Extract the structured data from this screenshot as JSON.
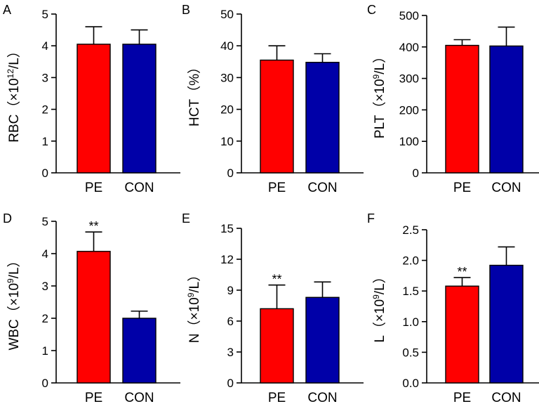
{
  "colors": {
    "pe": "#ff0000",
    "con": "#0000a8",
    "axis": "#000000"
  },
  "chart_data": [
    {
      "panel": "A",
      "type": "bar",
      "ylabel_main": "RBC（×10",
      "ylabel_sup": "12",
      "ylabel_end": "/L）",
      "categories": [
        "PE",
        "CON"
      ],
      "values": [
        4.05,
        4.05
      ],
      "errors": [
        0.55,
        0.45
      ],
      "significance": [
        "",
        ""
      ],
      "ylim": [
        0,
        5
      ],
      "ticks": [
        "0",
        "1",
        "2",
        "3",
        "4",
        "5"
      ],
      "tick_values": [
        0,
        1,
        2,
        3,
        4,
        5
      ]
    },
    {
      "panel": "B",
      "type": "bar",
      "ylabel_main": "HCT（%）",
      "ylabel_sup": "",
      "ylabel_end": "",
      "categories": [
        "PE",
        "CON"
      ],
      "values": [
        35.5,
        34.8
      ],
      "errors": [
        4.5,
        2.7
      ],
      "significance": [
        "",
        ""
      ],
      "ylim": [
        0,
        50
      ],
      "ticks": [
        "0",
        "10",
        "20",
        "30",
        "40",
        "50"
      ],
      "tick_values": [
        0,
        10,
        20,
        30,
        40,
        50
      ]
    },
    {
      "panel": "C",
      "type": "bar",
      "ylabel_main": "PLT（×10",
      "ylabel_sup": "9",
      "ylabel_end": "/L）",
      "categories": [
        "PE",
        "CON"
      ],
      "values": [
        405,
        403
      ],
      "errors": [
        18,
        60
      ],
      "significance": [
        "",
        ""
      ],
      "ylim": [
        0,
        500
      ],
      "ticks": [
        "0",
        "100",
        "200",
        "300",
        "400",
        "500"
      ],
      "tick_values": [
        0,
        100,
        200,
        300,
        400,
        500
      ]
    },
    {
      "panel": "D",
      "type": "bar",
      "ylabel_main": "WBC（×10",
      "ylabel_sup": "9",
      "ylabel_end": "/L）",
      "categories": [
        "PE",
        "CON"
      ],
      "values": [
        4.07,
        2.0
      ],
      "errors": [
        0.6,
        0.22
      ],
      "significance": [
        "**",
        ""
      ],
      "ylim": [
        0,
        5
      ],
      "ticks": [
        "0",
        "1",
        "2",
        "3",
        "4",
        "5"
      ],
      "tick_values": [
        0,
        1,
        2,
        3,
        4,
        5
      ]
    },
    {
      "panel": "E",
      "type": "bar",
      "ylabel_main": "N（×10",
      "ylabel_sup": "9",
      "ylabel_end": "/L）",
      "categories": [
        "PE",
        "CON"
      ],
      "values": [
        7.2,
        8.3
      ],
      "errors": [
        2.3,
        1.5
      ],
      "significance": [
        "**",
        ""
      ],
      "ylim": [
        0,
        15
      ],
      "ticks": [
        "0",
        "3",
        "6",
        "9",
        "12",
        "15"
      ],
      "tick_values": [
        0,
        3,
        6,
        9,
        12,
        15
      ]
    },
    {
      "panel": "F",
      "type": "bar",
      "ylabel_main": "L（×10",
      "ylabel_sup": "9",
      "ylabel_end": "/L）",
      "categories": [
        "PE",
        "CON"
      ],
      "values": [
        1.58,
        1.92
      ],
      "errors": [
        0.14,
        0.3
      ],
      "significance": [
        "**",
        ""
      ],
      "ylim": [
        0,
        2.5
      ],
      "ticks": [
        "0.0",
        "0.5",
        "1.0",
        "1.5",
        "2.0",
        "2.5"
      ],
      "tick_values": [
        0,
        0.5,
        1.0,
        1.5,
        2.0,
        2.5
      ]
    }
  ]
}
